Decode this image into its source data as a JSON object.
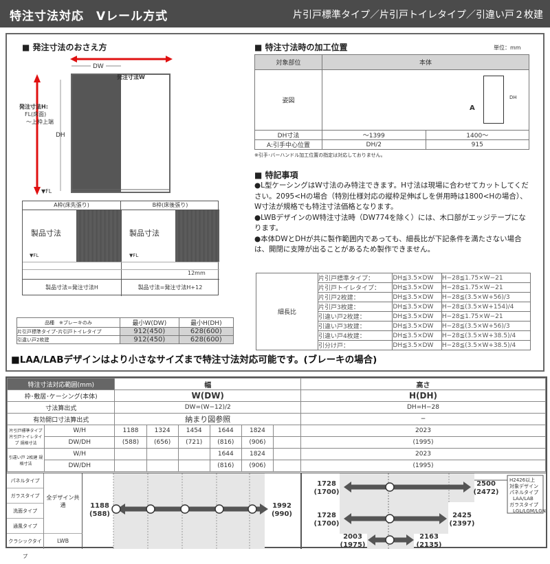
{
  "header": {
    "title": "特注寸法対応　Vレール方式",
    "subtitle": "片引戸標準タイプ／片引戸トイレタイプ／引違い戸２枚建"
  },
  "order": {
    "heading": "■ 発注寸法のおさえ方",
    "order_w": "発注寸法W",
    "dw": "DW",
    "dh": "DH",
    "order_h_line1": "発注寸法H:",
    "order_h_line2": "FL(床面)",
    "order_h_line3": "〜上枠上端",
    "fl": "▼FL",
    "frame_a": {
      "title": "A枠(床先張り)",
      "label": "製品寸法",
      "fl": "▼FL",
      "formula": "製品寸法=発注寸法H"
    },
    "frame_b": {
      "title": "B枠(床後張り)",
      "label": "製品寸法",
      "fl": "▼FL",
      "gap": "12mm",
      "formula": "製品寸法=発注寸法H+12"
    }
  },
  "min_table": {
    "headers": [
      "品種　※ブレーキのみ",
      "最小W(DW)",
      "最小H(DH)"
    ],
    "rows": [
      [
        "片引戸標準タイプ･片引戸トイレタイプ",
        "912(450)",
        "628(600)"
      ],
      [
        "引違い戸2枚建",
        "912(450)",
        "628(600)"
      ]
    ]
  },
  "position": {
    "heading": "■ 特注寸法時の加工位置",
    "unit": "単位：mm",
    "col1": "対象部位",
    "col2": "本体",
    "fig_label": "姿図",
    "fig_dh": "DH",
    "fig_a": "A",
    "row_dh": [
      "DH寸法",
      "〜1399",
      "1400〜"
    ],
    "row_a": [
      "A:引手中心位置",
      "DH/2",
      "915"
    ],
    "footnote": "※引手･バーハンドル加工位置の指定は対応しておりません。"
  },
  "notes": {
    "heading": "■ 特記事項",
    "items": [
      "●L型ケーシングはW寸法のみ特注できます。H寸法は現場に合わせてカットしてください。2095<Hの場合（特別仕様対応の縦枠足伸ばしを併用時は1800<Hの場合）、W寸法が規格でも特注寸法価格となります。",
      "●LWBデザインのW特注寸法時（DW774を除く）には、木口部がエッジテープになります。",
      "●本体DWとDHが共に製作範囲内であっても、細長比が下記条件を満たさない場合は、開閉に支障が出ることがあるため製作できません。"
    ]
  },
  "ratio": {
    "label": "細長比",
    "rows": [
      [
        "片引戸標準タイプ：",
        "DH≦3.5×DW",
        "H−28≦1.75×W−21"
      ],
      [
        "片引戸トイレタイプ：",
        "DH≦3.5×DW",
        "H−28≦1.75×W−21"
      ],
      [
        "片引戸2枚建：",
        "DH≦3.5×DW",
        "H−28≦(3.5×W+56)/3"
      ],
      [
        "片引戸3枚建：",
        "DH≦3.5×DW",
        "H−28≦(3.5×W+154)/4"
      ],
      [
        "引違い戸2枚建：",
        "DH≦3.5×DW",
        "H−28≦1.75×W−21"
      ],
      [
        "引違い戸3枚建：",
        "DH≦3.5×DW",
        "H−28≦(3.5×W+56)/3"
      ],
      [
        "引違い戸4枚建：",
        "DH≦3.5×DW",
        "H−28≦(3.5×W+38.5)/4"
      ],
      [
        "引分け戸：",
        "DH≦3.5×DW",
        "H−28≦(3.5×W+38.5)/4"
      ]
    ]
  },
  "laa_note": "■LAA/LABデザインはより小さなサイズまで特注寸法対応可能です。(ブレーキの場合)",
  "range": {
    "title": "特注寸法対応範囲(mm)",
    "width_head": "幅",
    "height_head": "高さ",
    "rows": [
      {
        "label": "枠･敷居･ケーシング(本体)",
        "w": "W(DW)",
        "h": "H(DH)"
      },
      {
        "label": "寸法算出式",
        "w": "DW=(W−12)/2",
        "h": "DH=H−28"
      },
      {
        "label": "有効開口寸法算出式",
        "w": "納まり図参照",
        "h": "−"
      }
    ],
    "std": {
      "label": "片引戸標準タイプ 片引戸トイレタイプ 規格寸法",
      "wh": "W/H",
      "dwdh": "DW/DH",
      "w": [
        "1188",
        "1324",
        "1454",
        "1644",
        "1824"
      ],
      "dw": [
        "(588)",
        "(656)",
        "(721)",
        "(816)",
        "(906)"
      ],
      "h": "2023",
      "dh": "(1995)"
    },
    "sliding": {
      "label": "引違い戸 2枚建 規格寸法",
      "wh": "W/H",
      "dwdh": "DW/DH",
      "w": [
        "1644",
        "1824"
      ],
      "dw": [
        "(816)",
        "(906)"
      ],
      "h": "2023",
      "dh": "(1995)"
    },
    "types": [
      "パネルタイプ",
      "ガラスタイプ",
      "洗面タイプ",
      "通風タイプ",
      "クラシックタイプ"
    ],
    "design_all": "全デザイン共通",
    "design_lwb": "LWB",
    "w_min": "1188",
    "w_min_dw": "(588)",
    "w_max": "1992",
    "w_max_dw": "(990)",
    "h_bars": [
      {
        "min": "1728",
        "min_d": "(1700)",
        "max": "2500",
        "max_d": "(2472)"
      },
      {
        "min": "1728",
        "min_d": "(1700)",
        "max": "2425",
        "max_d": "(2397)"
      },
      {
        "min": "2003",
        "min_d": "(1975)",
        "max": "2163",
        "max_d": "(2135)"
      }
    ],
    "h_note": [
      "H2426以上",
      "対象デザイン",
      "パネルタイプ",
      "LAA/LAB",
      "ガラスタイプ",
      "LGL/LGM/LGN"
    ]
  },
  "colors": {
    "header": "#4b4b4b",
    "arrow_red": "#e01010",
    "arrow_gray": "#555555",
    "shade": "#e6e6e6"
  }
}
